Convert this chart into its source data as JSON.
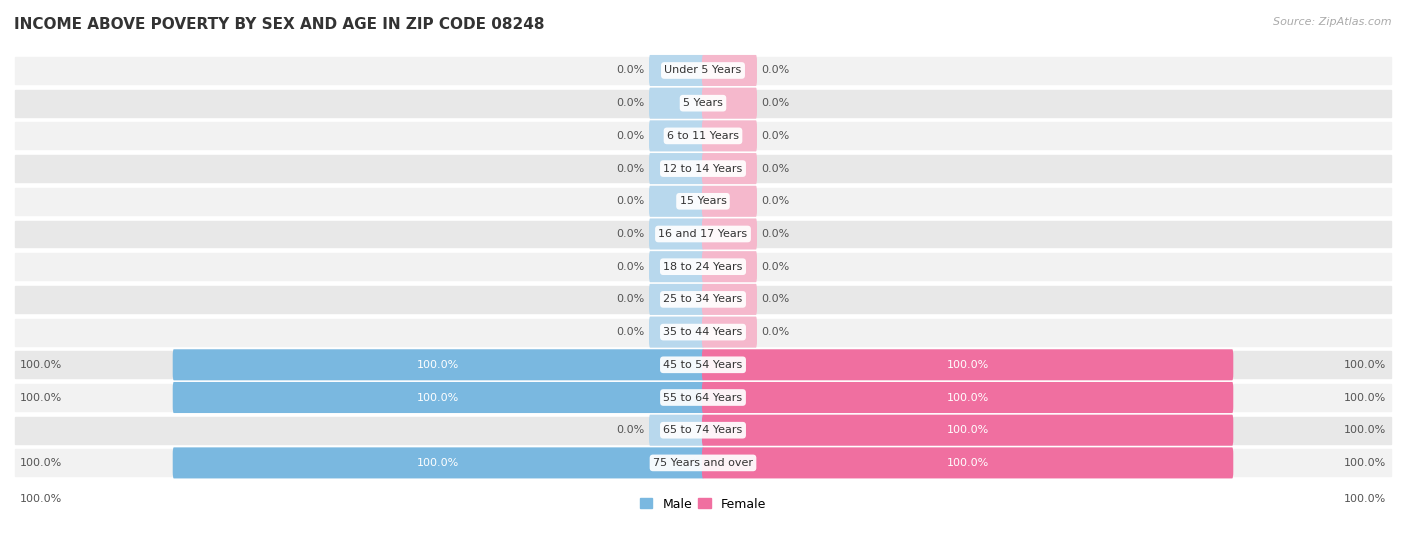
{
  "title": "INCOME ABOVE POVERTY BY SEX AND AGE IN ZIP CODE 08248",
  "source": "Source: ZipAtlas.com",
  "categories": [
    "Under 5 Years",
    "5 Years",
    "6 to 11 Years",
    "12 to 14 Years",
    "15 Years",
    "16 and 17 Years",
    "18 to 24 Years",
    "25 to 34 Years",
    "35 to 44 Years",
    "45 to 54 Years",
    "55 to 64 Years",
    "65 to 74 Years",
    "75 Years and over"
  ],
  "male_values": [
    0.0,
    0.0,
    0.0,
    0.0,
    0.0,
    0.0,
    0.0,
    0.0,
    0.0,
    100.0,
    100.0,
    0.0,
    100.0
  ],
  "female_values": [
    0.0,
    0.0,
    0.0,
    0.0,
    0.0,
    0.0,
    0.0,
    0.0,
    0.0,
    100.0,
    100.0,
    100.0,
    100.0
  ],
  "male_color": "#7ab8e0",
  "female_color": "#f06fa0",
  "male_color_light": "#b8d8ed",
  "female_color_light": "#f5b8cc",
  "row_bg_colors": [
    "#f2f2f2",
    "#e8e8e8"
  ],
  "max_val": 100.0,
  "title_fontsize": 11,
  "label_fontsize": 8,
  "category_fontsize": 8,
  "legend_fontsize": 9,
  "source_fontsize": 8
}
